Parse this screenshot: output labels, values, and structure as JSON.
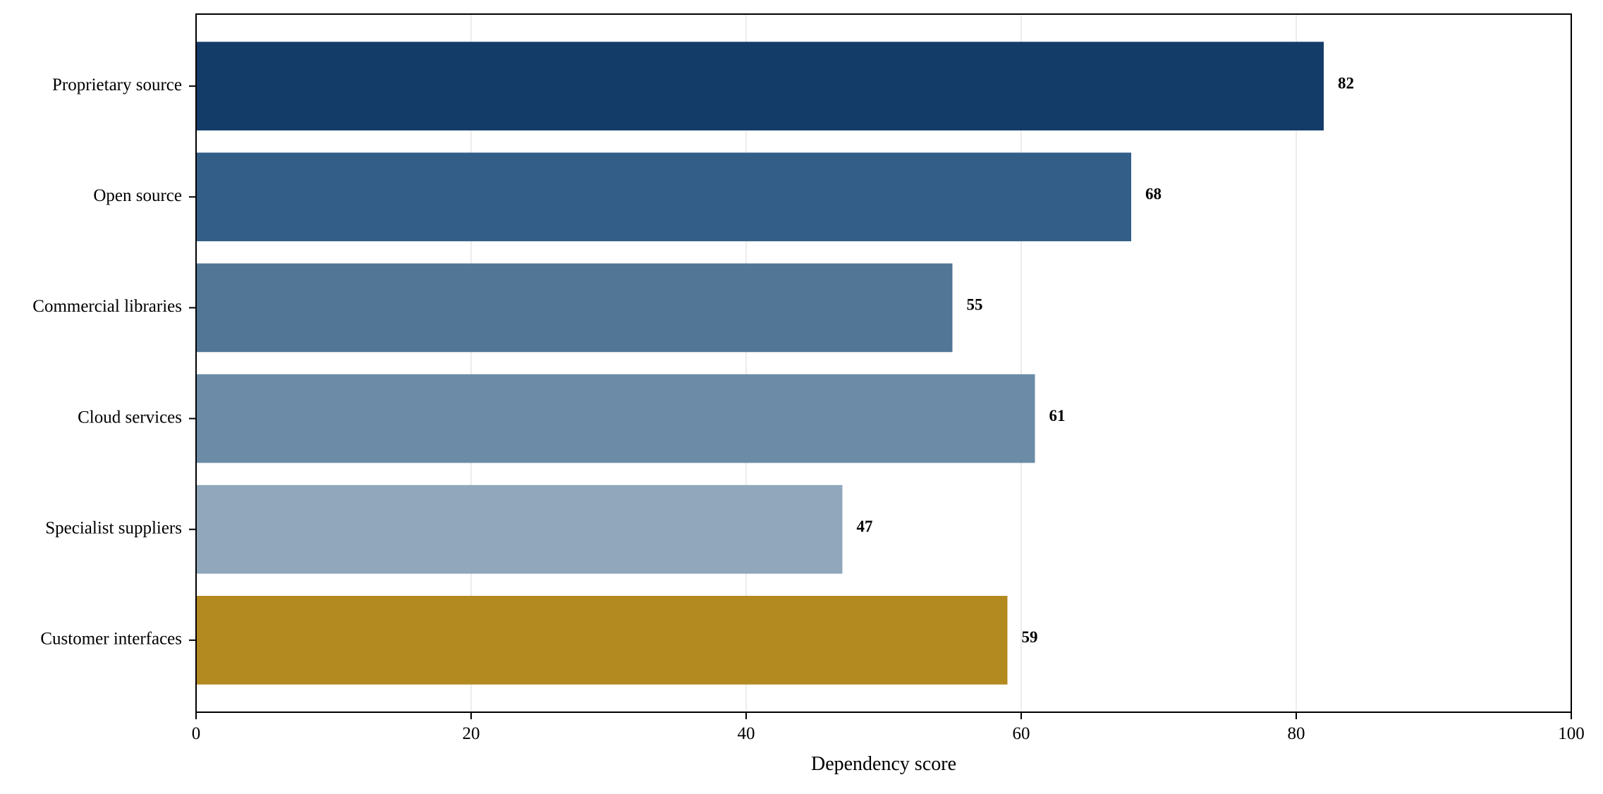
{
  "chart_data": {
    "type": "bar",
    "orientation": "horizontal",
    "categories": [
      "Proprietary source",
      "Open source",
      "Commercial libraries",
      "Cloud services",
      "Specialist suppliers",
      "Customer interfaces"
    ],
    "values": [
      82,
      68,
      55,
      61,
      47,
      59
    ],
    "value_labels": [
      "82",
      "68",
      "55",
      "61",
      "47",
      "59"
    ],
    "colors": [
      "#143c69",
      "#325e87",
      "#527695",
      "#6b8ba6",
      "#91a7bb",
      "#b38a20"
    ],
    "title": "",
    "xlabel": "Dependency score",
    "ylabel": "",
    "xlim": [
      0,
      100
    ],
    "xticks": [
      0,
      20,
      40,
      60,
      80,
      100
    ],
    "xtick_labels": [
      "0",
      "20",
      "40",
      "60",
      "80",
      "100"
    ],
    "grid": "vertical",
    "legend": "none"
  }
}
